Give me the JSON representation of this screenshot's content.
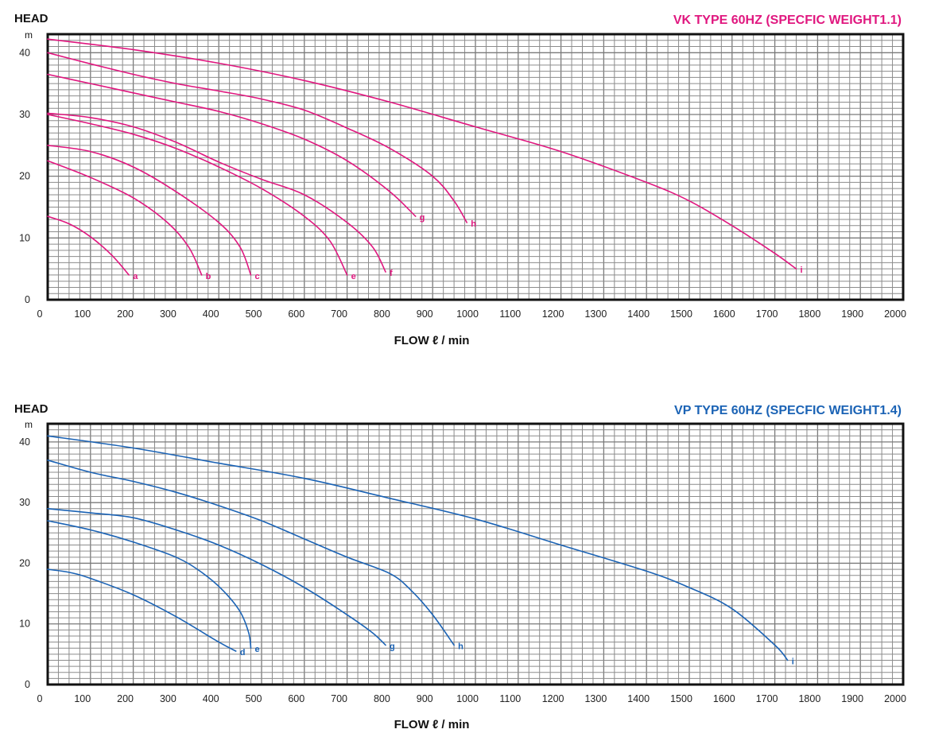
{
  "chart_data": [
    {
      "type": "line",
      "title": "VK TYPE 60HZ (SPECFIC WEIGHT1.1)",
      "ylabel": "HEAD",
      "yunit": "m",
      "xlabel": "FLOW  ℓ  / min",
      "xlim": [
        0,
        2000
      ],
      "ylim": [
        0,
        43
      ],
      "xticks": [
        "0",
        "100",
        "200",
        "300",
        "400",
        "500",
        "600",
        "700",
        "800",
        "900",
        "1000",
        "1100",
        "1200",
        "1300",
        "1400",
        "1500",
        "1600",
        "1700",
        "1800",
        "1900",
        "2000"
      ],
      "yticks": [
        "0",
        "10",
        "20",
        "30",
        "40"
      ],
      "grid": true,
      "color": "#e0177f",
      "series": [
        {
          "name": "a",
          "points": [
            [
              0,
              13.5
            ],
            [
              50,
              12.3
            ],
            [
              100,
              10.2
            ],
            [
              150,
              7.2
            ],
            [
              190,
              4
            ]
          ]
        },
        {
          "name": "b",
          "points": [
            [
              0,
              22.5
            ],
            [
              100,
              19.8
            ],
            [
              200,
              16.5
            ],
            [
              280,
              12.5
            ],
            [
              330,
              8.5
            ],
            [
              360,
              4
            ]
          ]
        },
        {
          "name": "c",
          "points": [
            [
              0,
              25
            ],
            [
              100,
              24
            ],
            [
              200,
              21.5
            ],
            [
              300,
              17.5
            ],
            [
              400,
              12.5
            ],
            [
              450,
              8.5
            ],
            [
              475,
              4
            ]
          ]
        },
        {
          "name": "e",
          "points": [
            [
              0,
              30
            ],
            [
              100,
              28.5
            ],
            [
              200,
              26.8
            ],
            [
              300,
              24.5
            ],
            [
              400,
              21.5
            ],
            [
              500,
              18
            ],
            [
              600,
              13.5
            ],
            [
              660,
              9.5
            ],
            [
              700,
              4
            ]
          ]
        },
        {
          "name": "f",
          "points": [
            [
              0,
              30.2
            ],
            [
              100,
              29.5
            ],
            [
              200,
              28
            ],
            [
              300,
              25.5
            ],
            [
              400,
              22.3
            ],
            [
              500,
              19.5
            ],
            [
              600,
              17
            ],
            [
              700,
              12.5
            ],
            [
              760,
              8.5
            ],
            [
              790,
              4.5
            ]
          ]
        },
        {
          "name": "g",
          "points": [
            [
              0,
              36.5
            ],
            [
              100,
              35
            ],
            [
              200,
              33.5
            ],
            [
              300,
              32
            ],
            [
              400,
              30.5
            ],
            [
              500,
              28.5
            ],
            [
              600,
              26
            ],
            [
              700,
              22.5
            ],
            [
              800,
              17.5
            ],
            [
              860,
              13.5
            ]
          ]
        },
        {
          "name": "h",
          "points": [
            [
              0,
              40
            ],
            [
              100,
              38.2
            ],
            [
              200,
              36.5
            ],
            [
              300,
              35
            ],
            [
              400,
              33.8
            ],
            [
              500,
              32.5
            ],
            [
              600,
              30.7
            ],
            [
              700,
              27.8
            ],
            [
              800,
              24.5
            ],
            [
              900,
              20
            ],
            [
              950,
              16
            ],
            [
              980,
              12.5
            ]
          ]
        },
        {
          "name": "i",
          "points": [
            [
              0,
              42.2
            ],
            [
              200,
              40.5
            ],
            [
              400,
              38.3
            ],
            [
              600,
              35.5
            ],
            [
              800,
              32
            ],
            [
              1000,
              28
            ],
            [
              1200,
              24
            ],
            [
              1400,
              19
            ],
            [
              1500,
              16
            ],
            [
              1600,
              12
            ],
            [
              1700,
              7.5
            ],
            [
              1750,
              5
            ]
          ]
        }
      ]
    },
    {
      "type": "line",
      "title": "VP TYPE 60HZ (SPECFIC WEIGHT1.4)",
      "ylabel": "HEAD",
      "yunit": "m",
      "xlabel": "FLOW  ℓ  / min",
      "xlim": [
        0,
        2000
      ],
      "ylim": [
        0,
        43
      ],
      "xticks": [
        "0",
        "100",
        "200",
        "300",
        "400",
        "500",
        "600",
        "700",
        "800",
        "900",
        "1000",
        "1100",
        "1200",
        "1300",
        "1400",
        "1500",
        "1600",
        "1700",
        "1800",
        "1900",
        "2000"
      ],
      "yticks": [
        "0",
        "10",
        "20",
        "30",
        "40"
      ],
      "grid": true,
      "color": "#1b63b5",
      "series": [
        {
          "name": "d",
          "points": [
            [
              0,
              19
            ],
            [
              50,
              18.5
            ],
            [
              100,
              17.5
            ],
            [
              200,
              14.8
            ],
            [
              300,
              11.2
            ],
            [
              400,
              7
            ],
            [
              440,
              5.5
            ]
          ]
        },
        {
          "name": "e",
          "points": [
            [
              0,
              27
            ],
            [
              100,
              25.5
            ],
            [
              200,
              23.5
            ],
            [
              300,
              21
            ],
            [
              360,
              18.5
            ],
            [
              410,
              15.5
            ],
            [
              450,
              12
            ],
            [
              470,
              8.5
            ],
            [
              475,
              6
            ]
          ]
        },
        {
          "name": "g",
          "points": [
            [
              0,
              29
            ],
            [
              100,
              28.3
            ],
            [
              200,
              27.5
            ],
            [
              300,
              25.5
            ],
            [
              400,
              23
            ],
            [
              500,
              19.8
            ],
            [
              600,
              16
            ],
            [
              700,
              11.5
            ],
            [
              760,
              8.5
            ],
            [
              790,
              6.5
            ]
          ]
        },
        {
          "name": "h",
          "points": [
            [
              0,
              37
            ],
            [
              100,
              35
            ],
            [
              200,
              33.5
            ],
            [
              300,
              31.7
            ],
            [
              400,
              29.5
            ],
            [
              500,
              27
            ],
            [
              600,
              24
            ],
            [
              700,
              21
            ],
            [
              800,
              18.3
            ],
            [
              850,
              15.5
            ],
            [
              900,
              11.5
            ],
            [
              950,
              6.5
            ]
          ]
        },
        {
          "name": "i",
          "points": [
            [
              0,
              41
            ],
            [
              200,
              39
            ],
            [
              400,
              36.5
            ],
            [
              600,
              34
            ],
            [
              800,
              30.7
            ],
            [
              1000,
              27.3
            ],
            [
              1200,
              23
            ],
            [
              1400,
              18.7
            ],
            [
              1500,
              16
            ],
            [
              1600,
              12.5
            ],
            [
              1700,
              6.5
            ],
            [
              1730,
              4
            ]
          ]
        }
      ]
    }
  ]
}
